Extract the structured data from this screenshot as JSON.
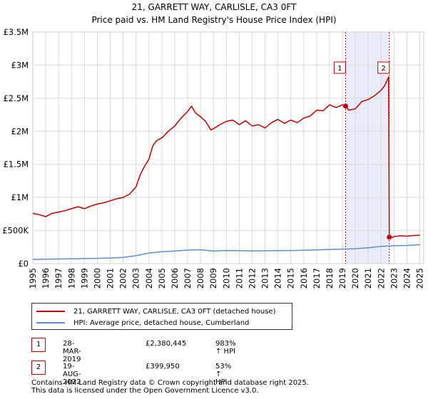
{
  "colors": {
    "red": "#c00000",
    "blue": "#5b8fd0",
    "grid": "#d9d9d9",
    "shade": "#e7ecf8"
  },
  "chart_data": {
    "type": "line",
    "title": "21, GARRETT WAY, CARLISLE, CA3 0FT",
    "subtitle": "Price paid vs. HM Land Registry's House Price Index (HPI)",
    "xlim": [
      1995.0,
      2025.3
    ],
    "ylim": [
      0,
      3500000
    ],
    "y_ticks": [
      0,
      500000,
      1000000,
      1500000,
      2000000,
      2500000,
      3000000,
      3500000
    ],
    "y_tick_labels": [
      "£0",
      "£500K",
      "£1M",
      "£1.5M",
      "£2M",
      "£2.5M",
      "£3M",
      "£3.5M"
    ],
    "x_ticks": [
      1995,
      1996,
      1997,
      1998,
      1999,
      2000,
      2001,
      2002,
      2003,
      2004,
      2005,
      2006,
      2007,
      2008,
      2009,
      2010,
      2011,
      2012,
      2013,
      2014,
      2015,
      2016,
      2017,
      2018,
      2019,
      2020,
      2021,
      2022,
      2023,
      2024,
      2025
    ],
    "x_tick_labels": [
      "1995",
      "1996",
      "1997",
      "1998",
      "1999",
      "2000",
      "2001",
      "2002",
      "2003",
      "2004",
      "2005",
      "2006",
      "2007",
      "2008",
      "2009",
      "2010",
      "2011",
      "2012",
      "2013",
      "2014",
      "2015",
      "2016",
      "2017",
      "2018",
      "2019",
      "2020",
      "2021",
      "2022",
      "2023",
      "2024",
      "2025"
    ],
    "shaded_region": [
      2019.24,
      2022.63
    ],
    "series": [
      {
        "name": "21, GARRETT WAY, CARLISLE, CA3 0FT (detached house)",
        "color": "#c00000",
        "x": [
          1995.0,
          1995.5,
          1996.0,
          1996.5,
          1997.0,
          1997.5,
          1998.0,
          1998.5,
          1999.0,
          1999.5,
          2000.0,
          2000.5,
          2001.0,
          2001.5,
          2002.0,
          2002.5,
          2003.0,
          2003.3,
          2003.6,
          2004.0,
          2004.3,
          2004.6,
          2005.0,
          2005.5,
          2006.0,
          2006.5,
          2007.0,
          2007.3,
          2007.6,
          2008.0,
          2008.4,
          2008.8,
          2009.1,
          2009.5,
          2010.0,
          2010.5,
          2011.0,
          2011.5,
          2012.0,
          2012.5,
          2013.0,
          2013.5,
          2014.0,
          2014.5,
          2015.0,
          2015.5,
          2016.0,
          2016.5,
          2017.0,
          2017.5,
          2018.0,
          2018.5,
          2019.0,
          2019.24,
          2019.5,
          2020.0,
          2020.5,
          2021.0,
          2021.5,
          2022.0,
          2022.3,
          2022.58,
          2022.63,
          2022.8,
          2023.0,
          2023.5,
          2024.0,
          2024.5,
          2025.0
        ],
        "values": [
          760000,
          740000,
          710000,
          760000,
          780000,
          800000,
          830000,
          860000,
          830000,
          870000,
          900000,
          920000,
          950000,
          980000,
          1000000,
          1050000,
          1160000,
          1330000,
          1450000,
          1580000,
          1780000,
          1860000,
          1900000,
          2000000,
          2080000,
          2200000,
          2300000,
          2380000,
          2280000,
          2220000,
          2150000,
          2020000,
          2050000,
          2100000,
          2150000,
          2170000,
          2100000,
          2160000,
          2080000,
          2100000,
          2050000,
          2130000,
          2180000,
          2120000,
          2170000,
          2130000,
          2200000,
          2230000,
          2320000,
          2310000,
          2400000,
          2360000,
          2400000,
          2380445,
          2320000,
          2340000,
          2450000,
          2480000,
          2540000,
          2620000,
          2700000,
          2820000,
          399950,
          390000,
          410000,
          420000,
          415000,
          425000,
          430000
        ]
      },
      {
        "name": "HPI: Average price, detached house, Cumberland",
        "color": "#5b8fd0",
        "x": [
          1995.0,
          1996.0,
          1997.0,
          1998.0,
          1999.0,
          2000.0,
          2001.0,
          2002.0,
          2003.0,
          2004.0,
          2005.0,
          2006.0,
          2007.0,
          2008.0,
          2009.0,
          2010.0,
          2011.0,
          2012.0,
          2013.0,
          2014.0,
          2015.0,
          2016.0,
          2017.0,
          2018.0,
          2019.0,
          2020.0,
          2021.0,
          2022.0,
          2023.0,
          2024.0,
          2025.0
        ],
        "values": [
          65000,
          67000,
          70000,
          73000,
          76000,
          80000,
          85000,
          95000,
          120000,
          160000,
          180000,
          190000,
          205000,
          210000,
          190000,
          198000,
          195000,
          193000,
          194000,
          196000,
          198000,
          202000,
          208000,
          214000,
          220000,
          225000,
          240000,
          262000,
          270000,
          275000,
          285000
        ]
      }
    ],
    "markers": [
      {
        "label": "1",
        "x": 2019.24,
        "value": 2380445
      },
      {
        "label": "2",
        "x": 2022.63,
        "value": 399950
      }
    ]
  },
  "legend": {
    "items": [
      "21, GARRETT WAY, CARLISLE, CA3 0FT (detached house)",
      "HPI: Average price, detached house, Cumberland"
    ]
  },
  "transactions": [
    {
      "id": "1",
      "date": "28-MAR-2019",
      "price": "£2,380,445",
      "hpi": "983% ↑ HPI"
    },
    {
      "id": "2",
      "date": "19-AUG-2022",
      "price": "£399,950",
      "hpi": "53% ↑ HPI"
    }
  ],
  "footer": {
    "line1": "Contains HM Land Registry data © Crown copyright and database right 2025.",
    "line2": "This data is licensed under the Open Government Licence v3.0."
  }
}
